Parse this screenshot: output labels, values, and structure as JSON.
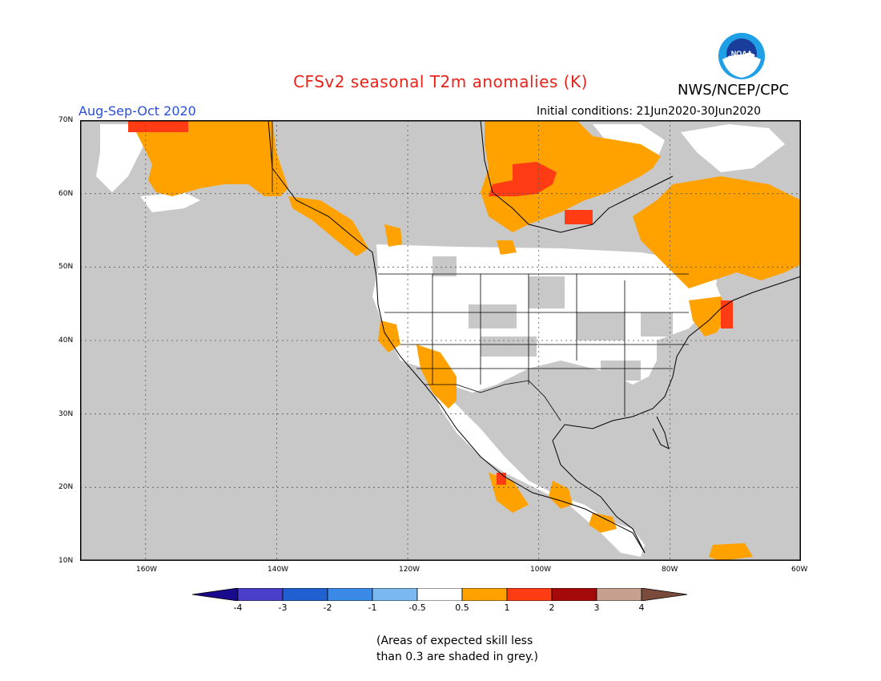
{
  "title": "CFSv2 seasonal T2m anomalies (K)",
  "organization": "NWS/NCEP/CPC",
  "logo_text": "NOAA",
  "season": "Aug-Sep-Oct 2020",
  "initial_conditions": "Initial conditions: 21Jun2020-30Jun2020",
  "lat_labels": [
    "70N",
    "60N",
    "50N",
    "40N",
    "30N",
    "20N",
    "10N"
  ],
  "lon_labels": [
    "160W",
    "140W",
    "120W",
    "100W",
    "80W",
    "60W"
  ],
  "colorbar": {
    "labels": [
      "-4",
      "-3",
      "-2",
      "-1",
      "-0.5",
      "0.5",
      "1",
      "2",
      "3",
      "4"
    ],
    "colors": [
      "#1a0a8c",
      "#4a3fc8",
      "#2060d0",
      "#3c8ae8",
      "#7ab8f0",
      "#ffffff",
      "#ffa200",
      "#ff3c14",
      "#a50a0a",
      "#c8a090",
      "#7a4a3a"
    ]
  },
  "colors": {
    "ocean": "#c8c8c8",
    "land_no_skill": "#c8c8c8",
    "land_skill_neutral": "#ffffff",
    "warm_05_1": "#ffa200",
    "warm_1_2": "#ff3c14"
  },
  "caption_line1": "(Areas of expected skill less",
  "caption_line2": "than 0.3 are shaded in grey.)"
}
